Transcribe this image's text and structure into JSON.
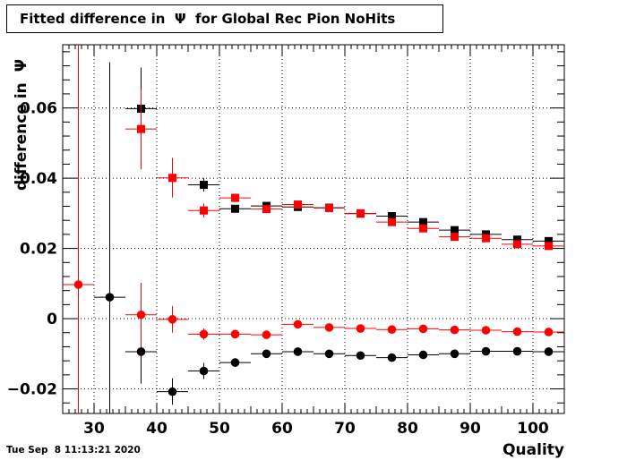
{
  "chart_data": {
    "type": "scatter",
    "title": "Fitted difference in  Ψ  for Global Rec Pion NoHits",
    "xlabel": "Quality",
    "ylabel": "difference in  Ψ",
    "xlim": [
      25,
      105
    ],
    "ylim": [
      -0.027,
      0.078
    ],
    "xticks": [
      "30",
      "40",
      "50",
      "60",
      "70",
      "80",
      "90",
      "100"
    ],
    "yticks": [
      "−0.02",
      "0",
      "0.02",
      "0.04",
      "0.06"
    ],
    "grid": true,
    "series": [
      {
        "marker": "square",
        "color": "#000000",
        "points": [
          {
            "x": 37.5,
            "y": 0.0598,
            "ylo": 0.048,
            "yhi": 0.0715
          },
          {
            "x": 47.5,
            "y": 0.0381,
            "ylo": 0.0362,
            "yhi": 0.04
          },
          {
            "x": 52.5,
            "y": 0.0313,
            "ylo": 0.0303,
            "yhi": 0.0323
          },
          {
            "x": 57.5,
            "y": 0.0321,
            "ylo": 0.0312,
            "yhi": 0.033
          },
          {
            "x": 62.5,
            "y": 0.0318,
            "ylo": 0.031,
            "yhi": 0.0326
          },
          {
            "x": 67.5,
            "y": 0.0316,
            "ylo": 0.0309,
            "yhi": 0.0323
          },
          {
            "x": 72.5,
            "y": 0.0299,
            "ylo": 0.0293,
            "yhi": 0.0305
          },
          {
            "x": 77.5,
            "y": 0.0292,
            "ylo": 0.0286,
            "yhi": 0.0298
          },
          {
            "x": 82.5,
            "y": 0.0275,
            "ylo": 0.027,
            "yhi": 0.028
          },
          {
            "x": 87.5,
            "y": 0.0252,
            "ylo": 0.0247,
            "yhi": 0.0257
          },
          {
            "x": 92.5,
            "y": 0.024,
            "ylo": 0.0236,
            "yhi": 0.0244
          },
          {
            "x": 97.5,
            "y": 0.0225,
            "ylo": 0.0221,
            "yhi": 0.0229
          },
          {
            "x": 102.5,
            "y": 0.0221,
            "ylo": 0.0217,
            "yhi": 0.0225
          }
        ]
      },
      {
        "marker": "square",
        "color": "#ff0000",
        "points": [
          {
            "x": 37.5,
            "y": 0.054,
            "ylo": 0.0425,
            "yhi": 0.0655
          },
          {
            "x": 42.5,
            "y": 0.0401,
            "ylo": 0.0345,
            "yhi": 0.0458
          },
          {
            "x": 47.5,
            "y": 0.0308,
            "ylo": 0.0288,
            "yhi": 0.0328
          },
          {
            "x": 52.5,
            "y": 0.0344,
            "ylo": 0.0332,
            "yhi": 0.0356
          },
          {
            "x": 57.5,
            "y": 0.0312,
            "ylo": 0.0303,
            "yhi": 0.0321
          },
          {
            "x": 62.5,
            "y": 0.0325,
            "ylo": 0.0317,
            "yhi": 0.0333
          },
          {
            "x": 67.5,
            "y": 0.0315,
            "ylo": 0.0308,
            "yhi": 0.0322
          },
          {
            "x": 72.5,
            "y": 0.03,
            "ylo": 0.0294,
            "yhi": 0.0306
          },
          {
            "x": 77.5,
            "y": 0.0275,
            "ylo": 0.0269,
            "yhi": 0.0281
          },
          {
            "x": 82.5,
            "y": 0.0257,
            "ylo": 0.0252,
            "yhi": 0.0262
          },
          {
            "x": 87.5,
            "y": 0.0233,
            "ylo": 0.0228,
            "yhi": 0.0238
          },
          {
            "x": 92.5,
            "y": 0.0229,
            "ylo": 0.0225,
            "yhi": 0.0233
          },
          {
            "x": 97.5,
            "y": 0.0212,
            "ylo": 0.0208,
            "yhi": 0.0216
          },
          {
            "x": 102.5,
            "y": 0.0207,
            "ylo": 0.0203,
            "yhi": 0.0211
          }
        ]
      },
      {
        "marker": "circle",
        "color": "#000000",
        "points": [
          {
            "x": 32.5,
            "y": 0.0061,
            "ylo": -0.027,
            "yhi": 0.073
          },
          {
            "x": 37.5,
            "y": -0.0094,
            "ylo": -0.0185,
            "yhi": -0.0005
          },
          {
            "x": 42.5,
            "y": -0.0208,
            "ylo": -0.0245,
            "yhi": -0.017
          },
          {
            "x": 47.5,
            "y": -0.0149,
            "ylo": -0.0172,
            "yhi": -0.0126
          },
          {
            "x": 52.5,
            "y": -0.0125,
            "ylo": -0.0137,
            "yhi": -0.0113
          },
          {
            "x": 57.5,
            "y": -0.01,
            "ylo": -0.0109,
            "yhi": -0.0091
          },
          {
            "x": 62.5,
            "y": -0.0094,
            "ylo": -0.0102,
            "yhi": -0.0086
          },
          {
            "x": 67.5,
            "y": -0.01,
            "ylo": -0.0107,
            "yhi": -0.0093
          },
          {
            "x": 72.5,
            "y": -0.0105,
            "ylo": -0.0111,
            "yhi": -0.0099
          },
          {
            "x": 77.5,
            "y": -0.0111,
            "ylo": -0.0117,
            "yhi": -0.0105
          },
          {
            "x": 82.5,
            "y": -0.0103,
            "ylo": -0.0108,
            "yhi": -0.0098
          },
          {
            "x": 87.5,
            "y": -0.01,
            "ylo": -0.0105,
            "yhi": -0.0095
          },
          {
            "x": 92.5,
            "y": -0.0093,
            "ylo": -0.0097,
            "yhi": -0.0089
          },
          {
            "x": 97.5,
            "y": -0.0093,
            "ylo": -0.0097,
            "yhi": -0.0089
          },
          {
            "x": 102.5,
            "y": -0.0094,
            "ylo": -0.0098,
            "yhi": -0.009
          }
        ]
      },
      {
        "marker": "circle",
        "color": "#ff0000",
        "points": [
          {
            "x": 27.5,
            "y": 0.0097,
            "ylo": -0.027,
            "yhi": 0.078
          },
          {
            "x": 37.5,
            "y": 0.0011,
            "ylo": -0.008,
            "yhi": 0.0102
          },
          {
            "x": 42.5,
            "y": -0.0002,
            "ylo": -0.004,
            "yhi": 0.0036
          },
          {
            "x": 47.5,
            "y": -0.0044,
            "ylo": -0.006,
            "yhi": -0.0028
          },
          {
            "x": 52.5,
            "y": -0.0044,
            "ylo": -0.0054,
            "yhi": -0.0034
          },
          {
            "x": 57.5,
            "y": -0.0046,
            "ylo": -0.0053,
            "yhi": -0.0039
          },
          {
            "x": 62.5,
            "y": -0.0016,
            "ylo": -0.0022,
            "yhi": -0.001
          },
          {
            "x": 67.5,
            "y": -0.0025,
            "ylo": -0.0031,
            "yhi": -0.0019
          },
          {
            "x": 72.5,
            "y": -0.0028,
            "ylo": -0.0033,
            "yhi": -0.0023
          },
          {
            "x": 77.5,
            "y": -0.0031,
            "ylo": -0.0036,
            "yhi": -0.0026
          },
          {
            "x": 82.5,
            "y": -0.0029,
            "ylo": -0.0034,
            "yhi": -0.0024
          },
          {
            "x": 87.5,
            "y": -0.0032,
            "ylo": -0.0036,
            "yhi": -0.0028
          },
          {
            "x": 92.5,
            "y": -0.0033,
            "ylo": -0.0037,
            "yhi": -0.0029
          },
          {
            "x": 97.5,
            "y": -0.0037,
            "ylo": -0.0041,
            "yhi": -0.0033
          },
          {
            "x": 102.5,
            "y": -0.0038,
            "ylo": -0.0042,
            "yhi": -0.0034
          }
        ]
      }
    ]
  },
  "timestamp": "Tue Sep  8 11:13:21 2020"
}
